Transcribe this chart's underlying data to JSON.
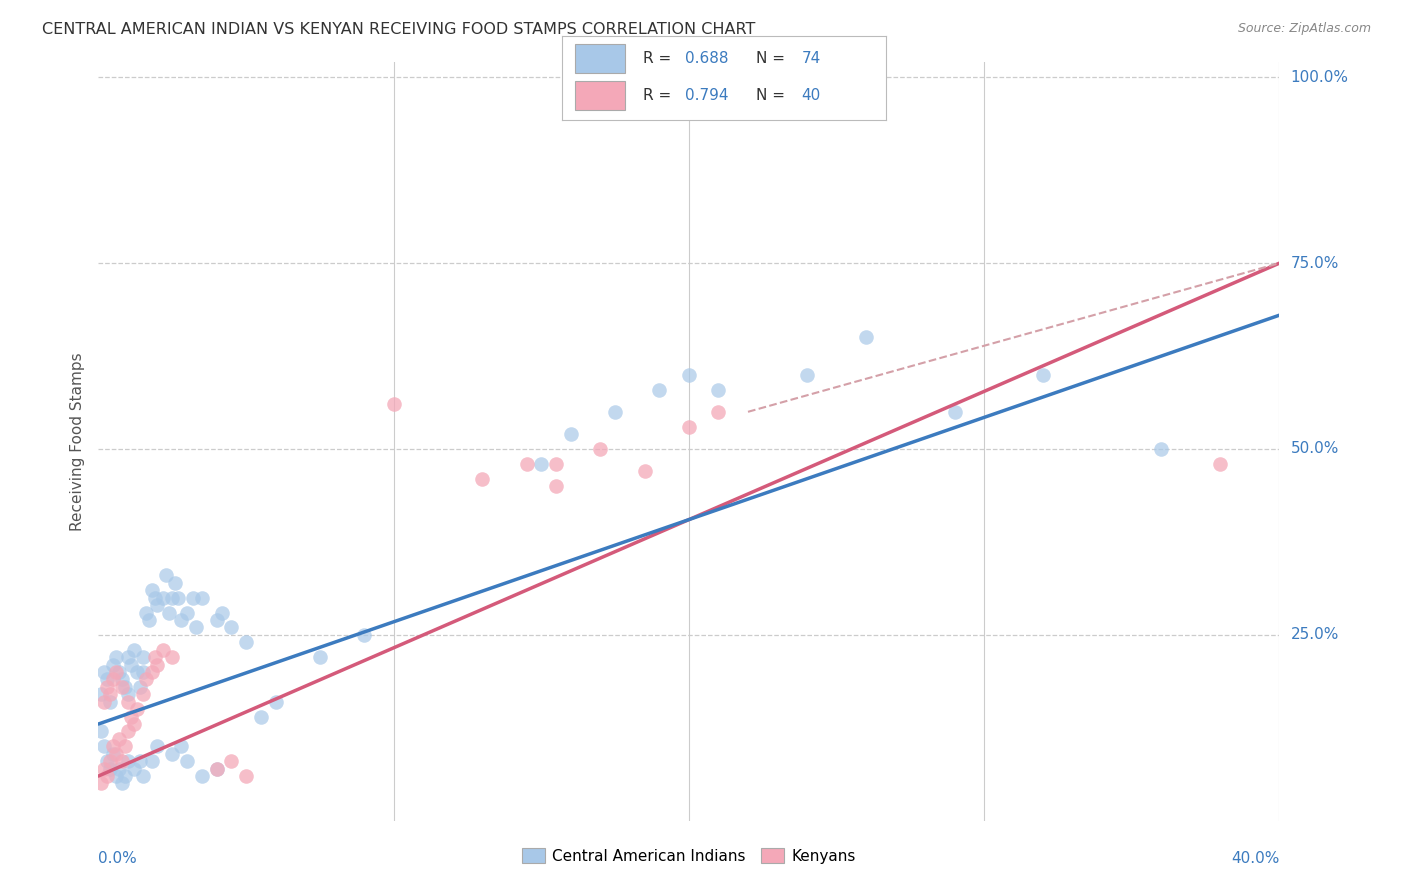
{
  "title": "CENTRAL AMERICAN INDIAN VS KENYAN RECEIVING FOOD STAMPS CORRELATION CHART",
  "source": "Source: ZipAtlas.com",
  "ylabel": "Receiving Food Stamps",
  "blue_color": "#a8c8e8",
  "pink_color": "#f4a8b8",
  "blue_line_color": "#3c7bbf",
  "pink_line_color": "#d45a7a",
  "dashed_line_color": "#d4a0a8",
  "background_color": "#ffffff",
  "grid_color": "#cccccc",
  "text_color_dark": "#333333",
  "text_color_blue": "#3c7bbf",
  "blue_scatter": [
    [
      0.001,
      0.17
    ],
    [
      0.002,
      0.2
    ],
    [
      0.003,
      0.19
    ],
    [
      0.004,
      0.16
    ],
    [
      0.005,
      0.21
    ],
    [
      0.006,
      0.22
    ],
    [
      0.007,
      0.2
    ],
    [
      0.008,
      0.19
    ],
    [
      0.009,
      0.18
    ],
    [
      0.01,
      0.22
    ],
    [
      0.01,
      0.17
    ],
    [
      0.011,
      0.21
    ],
    [
      0.012,
      0.23
    ],
    [
      0.013,
      0.2
    ],
    [
      0.014,
      0.18
    ],
    [
      0.015,
      0.22
    ],
    [
      0.015,
      0.2
    ],
    [
      0.016,
      0.28
    ],
    [
      0.017,
      0.27
    ],
    [
      0.018,
      0.31
    ],
    [
      0.019,
      0.3
    ],
    [
      0.02,
      0.29
    ],
    [
      0.022,
      0.3
    ],
    [
      0.023,
      0.33
    ],
    [
      0.024,
      0.28
    ],
    [
      0.025,
      0.3
    ],
    [
      0.026,
      0.32
    ],
    [
      0.027,
      0.3
    ],
    [
      0.028,
      0.27
    ],
    [
      0.03,
      0.28
    ],
    [
      0.032,
      0.3
    ],
    [
      0.033,
      0.26
    ],
    [
      0.035,
      0.3
    ],
    [
      0.04,
      0.27
    ],
    [
      0.042,
      0.28
    ],
    [
      0.045,
      0.26
    ],
    [
      0.05,
      0.24
    ],
    [
      0.001,
      0.12
    ],
    [
      0.002,
      0.1
    ],
    [
      0.003,
      0.08
    ],
    [
      0.004,
      0.07
    ],
    [
      0.005,
      0.09
    ],
    [
      0.006,
      0.06
    ],
    [
      0.007,
      0.07
    ],
    [
      0.008,
      0.05
    ],
    [
      0.009,
      0.06
    ],
    [
      0.01,
      0.08
    ],
    [
      0.012,
      0.07
    ],
    [
      0.014,
      0.08
    ],
    [
      0.015,
      0.06
    ],
    [
      0.018,
      0.08
    ],
    [
      0.02,
      0.1
    ],
    [
      0.025,
      0.09
    ],
    [
      0.028,
      0.1
    ],
    [
      0.03,
      0.08
    ],
    [
      0.035,
      0.06
    ],
    [
      0.04,
      0.07
    ],
    [
      0.055,
      0.14
    ],
    [
      0.06,
      0.16
    ],
    [
      0.075,
      0.22
    ],
    [
      0.09,
      0.25
    ],
    [
      0.15,
      0.48
    ],
    [
      0.16,
      0.52
    ],
    [
      0.175,
      0.55
    ],
    [
      0.19,
      0.58
    ],
    [
      0.2,
      0.6
    ],
    [
      0.21,
      0.58
    ],
    [
      0.24,
      0.6
    ],
    [
      0.26,
      0.65
    ],
    [
      0.29,
      0.55
    ],
    [
      0.32,
      0.6
    ],
    [
      0.36,
      0.5
    ]
  ],
  "pink_scatter": [
    [
      0.001,
      0.05
    ],
    [
      0.002,
      0.07
    ],
    [
      0.003,
      0.06
    ],
    [
      0.004,
      0.08
    ],
    [
      0.005,
      0.1
    ],
    [
      0.006,
      0.09
    ],
    [
      0.007,
      0.11
    ],
    [
      0.008,
      0.08
    ],
    [
      0.009,
      0.1
    ],
    [
      0.01,
      0.12
    ],
    [
      0.011,
      0.14
    ],
    [
      0.012,
      0.13
    ],
    [
      0.013,
      0.15
    ],
    [
      0.015,
      0.17
    ],
    [
      0.016,
      0.19
    ],
    [
      0.018,
      0.2
    ],
    [
      0.019,
      0.22
    ],
    [
      0.02,
      0.21
    ],
    [
      0.022,
      0.23
    ],
    [
      0.025,
      0.22
    ],
    [
      0.002,
      0.16
    ],
    [
      0.003,
      0.18
    ],
    [
      0.004,
      0.17
    ],
    [
      0.005,
      0.19
    ],
    [
      0.006,
      0.2
    ],
    [
      0.008,
      0.18
    ],
    [
      0.01,
      0.16
    ],
    [
      0.04,
      0.07
    ],
    [
      0.045,
      0.08
    ],
    [
      0.05,
      0.06
    ],
    [
      0.13,
      0.46
    ],
    [
      0.145,
      0.48
    ],
    [
      0.155,
      0.48
    ],
    [
      0.17,
      0.5
    ],
    [
      0.185,
      0.47
    ],
    [
      0.2,
      0.53
    ],
    [
      0.21,
      0.55
    ],
    [
      0.1,
      0.56
    ],
    [
      0.155,
      0.45
    ],
    [
      0.38,
      0.48
    ]
  ],
  "xlim": [
    0,
    0.4
  ],
  "ylim": [
    0,
    1.02
  ],
  "blue_line_x": [
    0.0,
    0.4
  ],
  "blue_line_y": [
    0.13,
    0.68
  ],
  "pink_line_x": [
    0.0,
    0.4
  ],
  "pink_line_y": [
    0.06,
    0.75
  ],
  "ytick_vals": [
    0.25,
    0.5,
    0.75,
    1.0
  ],
  "ytick_labels": [
    "25.0%",
    "50.0%",
    "75.0%",
    "100.0%"
  ]
}
